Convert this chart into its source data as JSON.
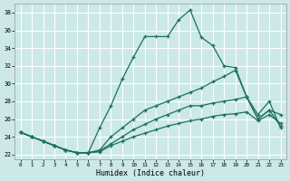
{
  "bg_color": "#cce8e8",
  "grid_color": "#b0d8d8",
  "line_color": "#1a7060",
  "xlabel": "Humidex (Indice chaleur)",
  "xlim": [
    -0.5,
    23.5
  ],
  "ylim": [
    21.5,
    39.0
  ],
  "xticks": [
    0,
    1,
    2,
    3,
    4,
    5,
    6,
    7,
    8,
    9,
    10,
    11,
    12,
    13,
    14,
    15,
    16,
    17,
    18,
    19,
    20,
    21,
    22,
    23
  ],
  "yticks": [
    22,
    24,
    26,
    28,
    30,
    32,
    34,
    36,
    38
  ],
  "series": [
    [
      24.5,
      24.0,
      23.5,
      23.0,
      22.5,
      22.2,
      22.2,
      25.0,
      27.5,
      30.5,
      33.0,
      35.3,
      35.3,
      35.3,
      37.2,
      38.3,
      35.2,
      34.3,
      32.0,
      31.8,
      28.5,
      26.0,
      27.0,
      26.5
    ],
    [
      24.5,
      24.0,
      23.5,
      23.0,
      22.5,
      22.2,
      22.2,
      22.5,
      24.0,
      25.0,
      26.0,
      27.0,
      27.5,
      28.0,
      28.5,
      29.0,
      29.5,
      30.2,
      30.8,
      31.5,
      28.5,
      26.5,
      28.0,
      25.0
    ],
    [
      24.5,
      24.0,
      23.5,
      23.0,
      22.5,
      22.2,
      22.2,
      22.4,
      23.2,
      24.0,
      24.8,
      25.4,
      26.0,
      26.5,
      27.0,
      27.5,
      27.5,
      27.8,
      28.0,
      28.2,
      28.5,
      26.0,
      27.0,
      25.2
    ],
    [
      24.5,
      24.0,
      23.5,
      23.0,
      22.5,
      22.2,
      22.2,
      22.3,
      23.0,
      23.5,
      24.0,
      24.4,
      24.8,
      25.2,
      25.5,
      25.8,
      26.0,
      26.3,
      26.5,
      26.6,
      26.8,
      25.8,
      26.5,
      25.5
    ]
  ]
}
